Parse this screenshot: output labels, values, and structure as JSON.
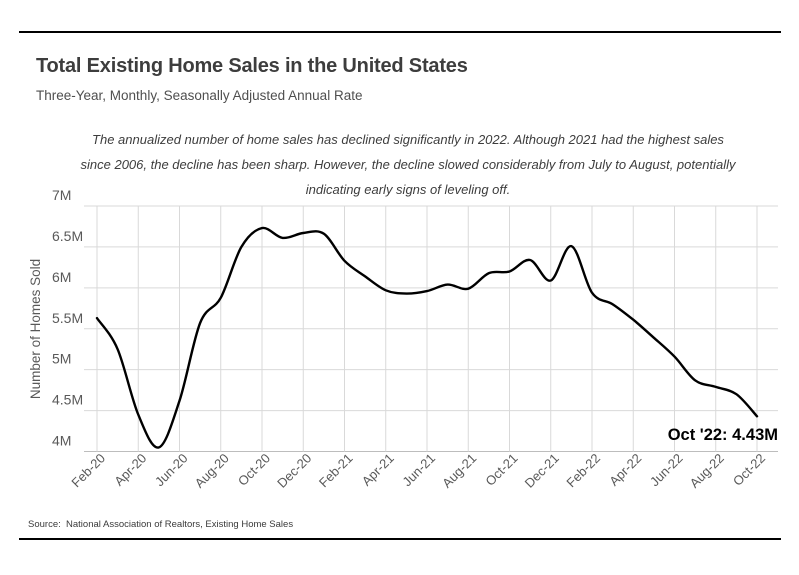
{
  "header": {
    "title": "Total Existing Home Sales in the United States",
    "subtitle": "Three-Year, Monthly, Seasonally Adjusted Annual Rate"
  },
  "annotation": {
    "lines": [
      "The annualized number of home sales has declined significantly in 2022. Although 2021 had the highest sales",
      "since 2006, the decline has been sharp. However, the decline slowed considerably from July to August, potentially",
      "indicating early signs of leveling off."
    ]
  },
  "chart_data": {
    "type": "line",
    "title": "Total Existing Home Sales in the United States",
    "x": [
      "Feb-20",
      "Mar-20",
      "Apr-20",
      "May-20",
      "Jun-20",
      "Jul-20",
      "Aug-20",
      "Sep-20",
      "Oct-20",
      "Nov-20",
      "Dec-20",
      "Jan-21",
      "Feb-21",
      "Mar-21",
      "Apr-21",
      "May-21",
      "Jun-21",
      "Jul-21",
      "Aug-21",
      "Sep-21",
      "Oct-21",
      "Nov-21",
      "Dec-21",
      "Jan-22",
      "Feb-22",
      "Mar-22",
      "Apr-22",
      "May-22",
      "Jun-22",
      "Jul-22",
      "Aug-22",
      "Sep-22",
      "Oct-22"
    ],
    "values": [
      5.63,
      5.25,
      4.45,
      4.05,
      4.62,
      5.57,
      5.88,
      6.5,
      6.73,
      6.61,
      6.67,
      6.66,
      6.33,
      6.14,
      5.97,
      5.93,
      5.96,
      6.04,
      5.99,
      6.18,
      6.2,
      6.34,
      6.09,
      6.51,
      5.94,
      5.8,
      5.61,
      5.39,
      5.16,
      4.87,
      4.79,
      4.7,
      4.43
    ],
    "xlabel": "",
    "ylabel": "Number of Homes Sold",
    "ylim": [
      4,
      7
    ],
    "yticks": [
      {
        "value": 7,
        "label": "7M"
      },
      {
        "value": 6.5,
        "label": "6.5M"
      },
      {
        "value": 6,
        "label": "6M"
      },
      {
        "value": 5.5,
        "label": "5.5M"
      },
      {
        "value": 5,
        "label": "5M"
      },
      {
        "value": 4.5,
        "label": "4.5M"
      },
      {
        "value": 4,
        "label": "4M"
      }
    ],
    "xtick_every": 2,
    "grid": true,
    "grid_color": "#d9d9d9",
    "baseline_color": "#bdbdbd",
    "line_color": "#000000",
    "legend": "none",
    "annotation_label": "Oct '22: 4.43M",
    "annotation_point": {
      "x": "Oct-22",
      "value": 4.43
    }
  },
  "footer": {
    "source": "Source:  National Association of Realtors, Existing Home Sales"
  }
}
